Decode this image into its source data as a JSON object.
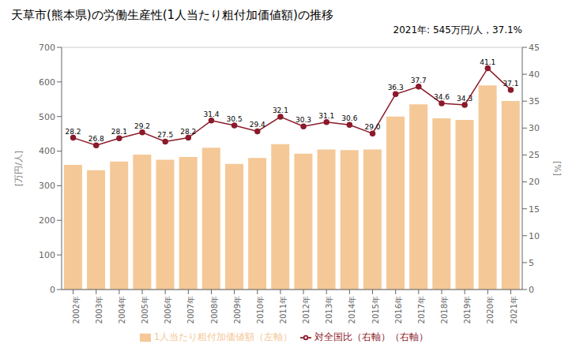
{
  "chart_data": {
    "type": "bar",
    "title": "天草市(熊本県)の労働生産性(1人当たり粗付加価値額)の推移",
    "y_label": "[万円/人]",
    "y2_label": "[%]",
    "annotation": "2021年: 545万円/人，37.1%",
    "categories": [
      "2002年",
      "2003年",
      "2004年",
      "2005年",
      "2006年",
      "2007年",
      "2008年",
      "2009年",
      "2010年",
      "2011年",
      "2012年",
      "2013年",
      "2014年",
      "2015年",
      "2016年",
      "2017年",
      "2018年",
      "2019年",
      "2020年",
      "2021年"
    ],
    "series": [
      {
        "name": "1人当たり粗付加価値額（左軸）",
        "type": "bar",
        "color": "#f5c897",
        "values": [
          360,
          345,
          370,
          390,
          375,
          383,
          410,
          363,
          380,
          420,
          393,
          405,
          403,
          405,
          500,
          535,
          495,
          490,
          590,
          545
        ]
      },
      {
        "name": "対全国比（右軸）（右軸）",
        "type": "line",
        "axis": "y2",
        "color": "#8b1a2a",
        "marker": "circle",
        "data_labels": true,
        "values": [
          28.2,
          26.8,
          28.1,
          29.2,
          27.5,
          28.2,
          31.4,
          30.5,
          29.4,
          32.1,
          30.3,
          31.1,
          30.6,
          29.0,
          36.3,
          37.7,
          34.6,
          34.3,
          41.1,
          37.1
        ],
        "value_labels": [
          "28.2",
          "26.8",
          "28.1",
          "29.2",
          "27.5",
          "28.2",
          "31.4",
          "30.5",
          "29.4",
          "32.1",
          "30.3",
          "31.1",
          "30.6",
          "29.0",
          "36.3",
          "37.7",
          "34.6",
          "34.3",
          "41.1",
          "37.1"
        ]
      }
    ],
    "ylim": [
      0,
      700
    ],
    "yticks": [
      0,
      100,
      200,
      300,
      400,
      500,
      600,
      700
    ],
    "y2lim": [
      0,
      45
    ],
    "y2ticks": [
      0,
      5,
      10,
      15,
      20,
      25,
      30,
      35,
      40,
      45
    ],
    "grid": true,
    "legend": "bottom"
  }
}
